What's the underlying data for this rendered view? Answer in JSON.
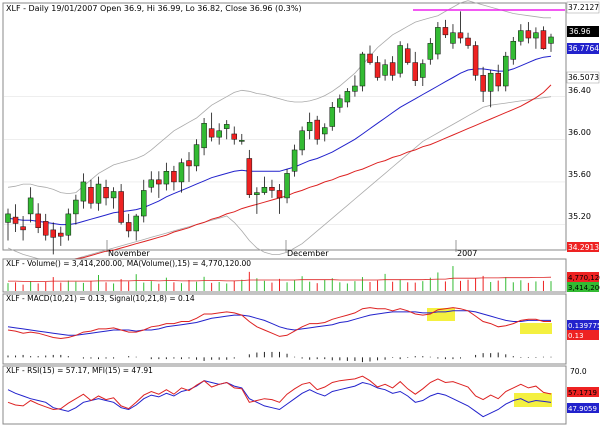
{
  "main": {
    "header": "XLF - Daily 19/01/2007 Open 36.9, Hi 36.99, Lo 36.82, Close 36.96 (0.3%)",
    "ticks": [
      "35.20",
      "35.60",
      "36.00",
      "36.40"
    ],
    "date_labels": [
      "November",
      "December",
      "2007"
    ],
    "tags": {
      "hline": "37.2127",
      "close": "36.96",
      "bb_mid": "36.7764",
      "ma_long": "36.5073",
      "low": "34.2913"
    }
  },
  "volume": {
    "header": "XLF - Volume() = 3,414,200.00, MA(Volume(),15) = 4,770,120.00",
    "tags": {
      "ma": "4,770,120",
      "value": "3,414,200"
    }
  },
  "macd": {
    "header": "XLF - MACD(10,21) = 0.13, Signal(10,21,8) = 0.14",
    "tags": {
      "signal": "0.139775",
      "macd": "0.13"
    }
  },
  "rsi": {
    "header": "XLF - RSI(15) = 57.17, MFI(15) = 47.91",
    "tick_70": "70.0",
    "tags": {
      "rsi": "57.1719",
      "mfi": "47.9059"
    }
  },
  "colors": {
    "up": "#33bb33",
    "down": "#ee2222",
    "bb_mid": "#2222cc",
    "ma_long": "#dd2222",
    "bands": "#aaaaaa",
    "hline": "#ee22ee",
    "highlight": "#f4f040"
  },
  "chart_data": [
    {
      "type": "candlestick",
      "title": "XLF - Daily 19/01/2007",
      "ohlc": [
        [
          35.22,
          35.35,
          35.05,
          35.3
        ],
        [
          35.27,
          35.39,
          35.13,
          35.21
        ],
        [
          35.18,
          35.28,
          35.05,
          35.15
        ],
        [
          35.3,
          35.55,
          35.22,
          35.45
        ],
        [
          35.3,
          35.4,
          35.12,
          35.17
        ],
        [
          35.23,
          35.3,
          35.05,
          35.1
        ],
        [
          35.15,
          35.22,
          34.92,
          35.08
        ],
        [
          35.12,
          35.18,
          35.0,
          35.09
        ],
        [
          35.1,
          35.35,
          35.05,
          35.3
        ],
        [
          35.3,
          35.48,
          35.2,
          35.43
        ],
        [
          35.42,
          35.68,
          35.35,
          35.6
        ],
        [
          35.55,
          35.62,
          35.35,
          35.4
        ],
        [
          35.4,
          35.65,
          35.33,
          35.58
        ],
        [
          35.55,
          35.62,
          35.38,
          35.45
        ],
        [
          35.45,
          35.55,
          35.35,
          35.51
        ],
        [
          35.51,
          35.58,
          35.2,
          35.22
        ],
        [
          35.22,
          35.3,
          35.08,
          35.14
        ],
        [
          35.14,
          35.3,
          35.05,
          35.28
        ],
        [
          35.28,
          35.62,
          35.22,
          35.52
        ],
        [
          35.55,
          35.7,
          35.5,
          35.62
        ],
        [
          35.62,
          35.7,
          35.45,
          35.58
        ],
        [
          35.58,
          35.78,
          35.52,
          35.7
        ],
        [
          35.7,
          35.75,
          35.52,
          35.6
        ],
        [
          35.6,
          35.82,
          35.5,
          35.78
        ],
        [
          35.8,
          35.88,
          35.6,
          35.75
        ],
        [
          35.75,
          36.0,
          35.7,
          35.95
        ],
        [
          35.92,
          36.2,
          35.85,
          36.15
        ],
        [
          36.1,
          36.25,
          35.98,
          36.02
        ],
        [
          36.02,
          36.15,
          35.95,
          36.08
        ],
        [
          36.1,
          36.18,
          36.0,
          36.14
        ],
        [
          36.05,
          36.12,
          35.95,
          36.0
        ],
        [
          35.98,
          36.05,
          35.95,
          35.99
        ],
        [
          35.82,
          35.9,
          35.45,
          35.48
        ],
        [
          35.48,
          35.55,
          35.3,
          35.5
        ],
        [
          35.5,
          35.65,
          35.48,
          35.55
        ],
        [
          35.55,
          35.62,
          35.45,
          35.52
        ],
        [
          35.52,
          35.58,
          35.3,
          35.45
        ],
        [
          35.45,
          35.72,
          35.4,
          35.68
        ],
        [
          35.7,
          35.95,
          35.65,
          35.9
        ],
        [
          35.9,
          36.12,
          35.85,
          36.08
        ],
        [
          36.08,
          36.25,
          36.0,
          36.16
        ],
        [
          36.18,
          36.22,
          35.95,
          36.0
        ],
        [
          36.05,
          36.15,
          35.98,
          36.11
        ],
        [
          36.12,
          36.35,
          36.08,
          36.3
        ],
        [
          36.3,
          36.42,
          36.25,
          36.38
        ],
        [
          36.35,
          36.48,
          36.3,
          36.45
        ],
        [
          36.45,
          36.6,
          36.4,
          36.5
        ],
        [
          36.5,
          36.82,
          36.45,
          36.8
        ],
        [
          36.8,
          36.88,
          36.7,
          36.72
        ],
        [
          36.72,
          36.78,
          36.55,
          36.58
        ],
        [
          36.6,
          36.75,
          36.55,
          36.7
        ],
        [
          36.72,
          36.78,
          36.55,
          36.6
        ],
        [
          36.62,
          36.92,
          36.58,
          36.88
        ],
        [
          36.85,
          36.9,
          36.7,
          36.72
        ],
        [
          36.72,
          36.82,
          36.5,
          36.55
        ],
        [
          36.58,
          36.75,
          36.5,
          36.71
        ],
        [
          36.75,
          36.95,
          36.7,
          36.9
        ],
        [
          36.8,
          37.1,
          36.75,
          37.05
        ],
        [
          37.05,
          37.12,
          36.95,
          36.98
        ],
        [
          36.9,
          37.08,
          36.85,
          37.0
        ],
        [
          37.0,
          37.2,
          36.9,
          36.95
        ],
        [
          36.95,
          37.0,
          36.85,
          36.88
        ],
        [
          36.88,
          36.92,
          36.55,
          36.6
        ],
        [
          36.6,
          36.68,
          36.35,
          36.45
        ],
        [
          36.45,
          36.65,
          36.3,
          36.62
        ],
        [
          36.62,
          36.7,
          36.45,
          36.5
        ],
        [
          36.5,
          36.82,
          36.45,
          36.78
        ],
        [
          36.75,
          36.96,
          36.7,
          36.92
        ],
        [
          36.92,
          37.08,
          36.88,
          37.02
        ],
        [
          37.02,
          37.1,
          36.9,
          36.95
        ],
        [
          36.95,
          37.05,
          36.85,
          37.0
        ],
        [
          37.02,
          37.06,
          36.84,
          36.85
        ],
        [
          36.9,
          36.99,
          36.82,
          36.96
        ]
      ],
      "bb_mid": [
        35.26,
        35.25,
        35.24,
        35.24,
        35.23,
        35.22,
        35.21,
        35.2,
        35.2,
        35.21,
        35.23,
        35.25,
        35.27,
        35.29,
        35.31,
        35.32,
        35.33,
        35.34,
        35.36,
        35.39,
        35.42,
        35.46,
        35.49,
        35.52,
        35.55,
        35.58,
        35.61,
        35.64,
        35.66,
        35.68,
        35.7,
        35.71,
        35.7,
        35.7,
        35.7,
        35.7,
        35.7,
        35.72,
        35.74,
        35.77,
        35.8,
        35.82,
        35.85,
        35.88,
        35.92,
        35.96,
        36.0,
        36.05,
        36.1,
        36.15,
        36.2,
        36.25,
        36.3,
        36.34,
        36.38,
        36.42,
        36.46,
        36.5,
        36.54,
        36.58,
        36.62,
        36.65,
        36.66,
        36.66,
        36.65,
        36.64,
        36.64,
        36.66,
        36.69,
        36.72,
        36.75,
        36.77,
        36.78
      ],
      "ma_long": [
        34.75,
        34.76,
        34.78,
        34.79,
        34.81,
        34.82,
        34.84,
        34.85,
        34.86,
        34.88,
        34.89,
        34.91,
        34.93,
        34.95,
        34.96,
        34.98,
        35.0,
        35.02,
        35.04,
        35.06,
        35.08,
        35.1,
        35.13,
        35.15,
        35.17,
        35.2,
        35.22,
        35.25,
        35.27,
        35.3,
        35.32,
        35.35,
        35.37,
        35.39,
        35.41,
        35.43,
        35.45,
        35.47,
        35.5,
        35.52,
        35.55,
        35.57,
        35.6,
        35.62,
        35.65,
        35.67,
        35.7,
        35.72,
        35.75,
        35.78,
        35.8,
        35.83,
        35.85,
        35.88,
        35.9,
        35.93,
        35.95,
        35.98,
        36.01,
        36.04,
        36.07,
        36.1,
        36.13,
        36.16,
        36.19,
        36.22,
        36.25,
        36.28,
        36.31,
        36.35,
        36.39,
        36.44,
        36.51
      ],
      "bb_upper": [
        35.55,
        35.56,
        35.58,
        35.58,
        35.56,
        35.55,
        35.53,
        35.5,
        35.49,
        35.5,
        35.56,
        35.62,
        35.68,
        35.72,
        35.76,
        35.78,
        35.8,
        35.82,
        35.85,
        35.9,
        35.96,
        36.02,
        36.08,
        36.12,
        36.16,
        36.2,
        36.26,
        36.32,
        36.36,
        36.4,
        36.44,
        36.46,
        36.45,
        36.43,
        36.42,
        36.4,
        36.38,
        36.36,
        36.35,
        36.35,
        36.36,
        36.38,
        36.41,
        36.45,
        36.5,
        36.56,
        36.62,
        36.7,
        36.78,
        36.86,
        36.92,
        36.98,
        37.02,
        37.06,
        37.1,
        37.12,
        37.14,
        37.16,
        37.2,
        37.24,
        37.28,
        37.3,
        37.28,
        37.26,
        37.24,
        37.22,
        37.2,
        37.18,
        37.17,
        37.16,
        37.15,
        37.14,
        37.14
      ],
      "bb_lower": [
        34.98,
        34.95,
        34.92,
        34.9,
        34.88,
        34.87,
        34.86,
        34.86,
        34.87,
        34.88,
        34.9,
        34.92,
        34.94,
        34.96,
        34.98,
        35.0,
        35.02,
        35.04,
        35.06,
        35.08,
        35.1,
        35.12,
        35.14,
        35.16,
        35.18,
        35.2,
        35.22,
        35.24,
        35.26,
        35.28,
        35.22,
        35.14,
        35.05,
        34.98,
        34.94,
        34.92,
        34.92,
        34.94,
        34.98,
        35.02,
        35.08,
        35.14,
        35.2,
        35.26,
        35.32,
        35.38,
        35.44,
        35.5,
        35.56,
        35.62,
        35.68,
        35.74,
        35.8,
        35.86,
        35.92,
        35.98,
        36.02,
        36.06,
        36.1,
        36.14,
        36.18,
        36.22,
        36.26,
        36.3,
        36.32,
        36.33,
        36.34,
        36.35,
        36.36,
        36.37,
        36.38,
        36.39,
        36.4
      ],
      "hline": 37.2127,
      "ylim": [
        34.98,
        37.26
      ]
    },
    {
      "type": "bar",
      "title": "XLF - Volume()",
      "values": [
        2.7,
        3.0,
        2.2,
        3.4,
        2.6,
        3.1,
        4.8,
        2.9,
        3.6,
        3.2,
        2.8,
        3.5,
        5.5,
        3.0,
        2.6,
        4.1,
        3.3,
        5.8,
        2.9,
        3.4,
        2.5,
        4.6,
        3.0,
        2.7,
        3.8,
        3.2,
        4.9,
        2.8,
        3.1,
        2.6,
        3.6,
        3.9,
        6.6,
        4.4,
        3.5,
        2.9,
        4.2,
        3.0,
        3.7,
        5.1,
        3.2,
        2.7,
        3.9,
        4.4,
        3.0,
        2.6,
        3.4,
        4.8,
        3.1,
        3.6,
        5.9,
        3.2,
        4.0,
        3.0,
        2.9,
        3.4,
        4.6,
        6.4,
        3.3,
        8.6,
        3.5,
        3.9,
        4.3,
        5.2,
        3.1,
        3.6,
        4.8,
        3.0,
        3.7,
        2.8,
        3.3,
        3.5,
        3.41
      ],
      "ma": [
        3.4,
        3.4,
        3.3,
        3.3,
        3.3,
        3.3,
        3.4,
        3.4,
        3.4,
        3.4,
        3.4,
        3.4,
        3.5,
        3.5,
        3.5,
        3.5,
        3.5,
        3.6,
        3.6,
        3.6,
        3.5,
        3.6,
        3.6,
        3.5,
        3.5,
        3.5,
        3.6,
        3.6,
        3.6,
        3.5,
        3.5,
        3.6,
        3.8,
        3.8,
        3.8,
        3.8,
        3.8,
        3.8,
        3.8,
        3.9,
        3.9,
        3.9,
        3.9,
        3.9,
        3.8,
        3.8,
        3.8,
        3.8,
        3.8,
        3.8,
        3.9,
        3.9,
        3.9,
        3.9,
        3.9,
        3.9,
        4.0,
        4.1,
        4.1,
        4.4,
        4.4,
        4.4,
        4.4,
        4.5,
        4.5,
        4.5,
        4.6,
        4.6,
        4.6,
        4.6,
        4.7,
        4.7,
        4.77
      ],
      "ylim": [
        0,
        10
      ]
    },
    {
      "type": "line",
      "title": "XLF - MACD(10,21)",
      "macd": [
        0.05,
        0.04,
        0.02,
        0.03,
        0.02,
        0.0,
        -0.02,
        -0.03,
        -0.02,
        0.0,
        0.03,
        0.04,
        0.06,
        0.06,
        0.07,
        0.05,
        0.03,
        0.03,
        0.05,
        0.08,
        0.09,
        0.11,
        0.11,
        0.13,
        0.13,
        0.16,
        0.2,
        0.2,
        0.21,
        0.22,
        0.21,
        0.19,
        0.13,
        0.08,
        0.05,
        0.02,
        -0.01,
        0.0,
        0.04,
        0.08,
        0.11,
        0.11,
        0.12,
        0.15,
        0.17,
        0.19,
        0.21,
        0.25,
        0.26,
        0.25,
        0.25,
        0.23,
        0.25,
        0.23,
        0.2,
        0.19,
        0.2,
        0.24,
        0.25,
        0.26,
        0.25,
        0.23,
        0.18,
        0.13,
        0.11,
        0.08,
        0.09,
        0.11,
        0.14,
        0.15,
        0.15,
        0.13,
        0.13
      ],
      "signal": [
        0.08,
        0.07,
        0.06,
        0.05,
        0.04,
        0.03,
        0.02,
        0.01,
        0.0,
        0.0,
        0.01,
        0.02,
        0.03,
        0.04,
        0.05,
        0.05,
        0.05,
        0.04,
        0.05,
        0.05,
        0.06,
        0.08,
        0.09,
        0.1,
        0.11,
        0.12,
        0.14,
        0.16,
        0.17,
        0.18,
        0.19,
        0.19,
        0.18,
        0.16,
        0.14,
        0.11,
        0.08,
        0.06,
        0.05,
        0.06,
        0.07,
        0.08,
        0.09,
        0.1,
        0.12,
        0.13,
        0.15,
        0.17,
        0.19,
        0.2,
        0.21,
        0.22,
        0.22,
        0.22,
        0.22,
        0.21,
        0.21,
        0.22,
        0.22,
        0.23,
        0.23,
        0.23,
        0.22,
        0.2,
        0.18,
        0.16,
        0.14,
        0.13,
        0.13,
        0.14,
        0.14,
        0.14,
        0.14
      ],
      "histogram": [
        -0.03,
        -0.03,
        -0.04,
        -0.02,
        -0.02,
        -0.03,
        -0.04,
        -0.04,
        -0.02,
        0.0,
        0.02,
        0.02,
        0.03,
        0.02,
        0.02,
        0.0,
        -0.02,
        -0.01,
        0.0,
        0.03,
        0.03,
        0.03,
        0.02,
        0.03,
        0.02,
        0.04,
        0.06,
        0.04,
        0.04,
        0.04,
        0.02,
        0.0,
        -0.05,
        -0.08,
        -0.09,
        -0.09,
        -0.09,
        -0.06,
        -0.01,
        0.02,
        0.04,
        0.03,
        0.03,
        0.05,
        0.05,
        0.06,
        0.06,
        0.08,
        0.07,
        0.05,
        0.04,
        0.01,
        0.03,
        0.01,
        -0.02,
        -0.02,
        -0.01,
        0.02,
        0.03,
        0.03,
        0.02,
        0.0,
        -0.04,
        -0.07,
        -0.07,
        -0.08,
        -0.05,
        -0.02,
        0.01,
        0.01,
        0.01,
        -0.01,
        -0.01
      ],
      "ylim": [
        -0.25,
        0.35
      ]
    },
    {
      "type": "line",
      "title": "XLF - RSI(15), MFI(15)",
      "rsi": [
        48,
        45,
        44,
        50,
        46,
        43,
        40,
        41,
        47,
        52,
        57,
        50,
        55,
        51,
        53,
        44,
        41,
        48,
        56,
        60,
        57,
        62,
        57,
        64,
        61,
        67,
        72,
        65,
        68,
        70,
        64,
        63,
        48,
        50,
        52,
        51,
        48,
        57,
        63,
        68,
        70,
        62,
        65,
        70,
        72,
        73,
        74,
        77,
        72,
        65,
        68,
        64,
        71,
        63,
        57,
        63,
        70,
        74,
        70,
        71,
        68,
        65,
        55,
        51,
        56,
        52,
        60,
        64,
        68,
        64,
        66,
        59,
        57.17
      ],
      "mfi": [
        62,
        58,
        55,
        52,
        50,
        48,
        42,
        40,
        38,
        42,
        48,
        50,
        52,
        50,
        48,
        42,
        40,
        45,
        52,
        56,
        54,
        58,
        55,
        60,
        62,
        66,
        72,
        70,
        68,
        70,
        66,
        64,
        52,
        48,
        44,
        42,
        40,
        46,
        52,
        58,
        62,
        58,
        55,
        60,
        62,
        64,
        66,
        70,
        68,
        64,
        62,
        58,
        60,
        55,
        48,
        50,
        55,
        58,
        56,
        52,
        48,
        44,
        38,
        32,
        36,
        40,
        46,
        50,
        52,
        48,
        50,
        49,
        47.91
      ],
      "ylim": [
        25,
        85
      ]
    }
  ]
}
